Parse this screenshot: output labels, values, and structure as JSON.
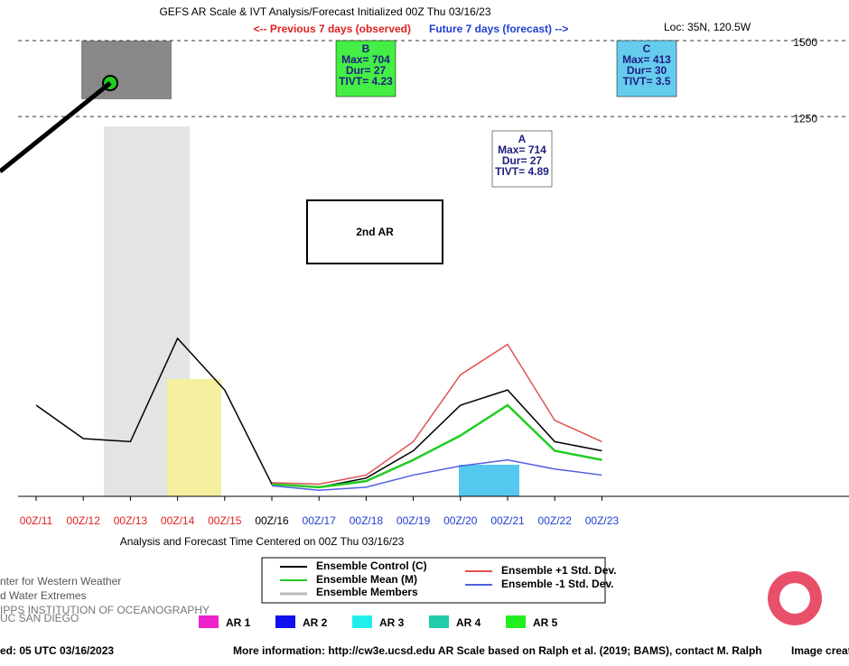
{
  "chart_data": {
    "type": "line",
    "title": "GEFS AR Scale & IVT Analysis/Forecast Initialized 00Z Thu 03/16/23",
    "observed_note": "<-- Previous 7 days (observed)",
    "forecast_note": "Future 7 days (forecast) -->",
    "location": "Loc: 35N, 120.5W",
    "x_label": "Analysis and Forecast Time Centered on 00Z Thu 03/16/23",
    "annotation": "2nd AR",
    "categories": [
      "00Z/11",
      "00Z/12",
      "00Z/13",
      "00Z/14",
      "00Z/15",
      "00Z/16",
      "00Z/17",
      "00Z/18",
      "00Z/19",
      "00Z/20",
      "00Z/21",
      "00Z/22",
      "00Z/23"
    ],
    "category_colors": [
      "#e02020",
      "#e02020",
      "#e02020",
      "#e02020",
      "#e02020",
      "#000000",
      "#2040d0",
      "#2040d0",
      "#2040d0",
      "#2040d0",
      "#2040d0",
      "#2040d0",
      "#2040d0"
    ],
    "ylim": [
      0,
      1500
    ],
    "yticks": [
      1250,
      1500
    ],
    "grid": true,
    "series": [
      {
        "name": "Ensemble Control (C)",
        "color": "#000000",
        "values": [
          300,
          190,
          180,
          520,
          350,
          40,
          30,
          60,
          150,
          300,
          350,
          180,
          150
        ]
      },
      {
        "name": "Ensemble Mean (M)",
        "color": "#22cc22",
        "values": [
          null,
          null,
          null,
          null,
          null,
          40,
          30,
          50,
          120,
          200,
          300,
          150,
          120
        ]
      },
      {
        "name": "Ensemble +1 Std. Dev.",
        "color": "#e05050",
        "values": [
          null,
          null,
          null,
          null,
          null,
          45,
          40,
          70,
          180,
          400,
          500,
          250,
          180
        ]
      },
      {
        "name": "Ensemble -1 Std. Dev.",
        "color": "#5060e0",
        "values": [
          null,
          null,
          null,
          null,
          null,
          35,
          20,
          30,
          70,
          100,
          120,
          90,
          70
        ]
      }
    ],
    "members_label": "Ensemble Members",
    "ar_boxes": [
      {
        "id": "A",
        "max": "Max= 714",
        "dur": "Dur= 27",
        "tivt": "TIVT= 4.89",
        "color": "#ffffff"
      },
      {
        "id": "B",
        "max": "Max= 704",
        "dur": "Dur= 27",
        "tivt": "TIVT= 4.23",
        "color": "#44ee44"
      },
      {
        "id": "C",
        "max": "Max= 413",
        "dur": "Dur= 30",
        "tivt": "TIVT= 3.5",
        "color": "#66ccee"
      }
    ],
    "ar_legend": [
      {
        "name": "AR 1",
        "color": "#ee22cc"
      },
      {
        "name": "AR 2",
        "color": "#1010ee"
      },
      {
        "name": "AR 3",
        "color": "#22eeee"
      },
      {
        "name": "AR 4",
        "color": "#22ccaa"
      },
      {
        "name": "AR 5",
        "color": "#22ee22"
      }
    ]
  },
  "footer": {
    "logo_line1": "nter for Western Weather",
    "logo_line2": "d Water Extremes",
    "logo_line3": "IPPS INSTITUTION OF OCEANOGRAPHY",
    "logo_line4": "UC SAN DIEGO",
    "created": "ed: 05 UTC 03/16/2023",
    "info": "More information: http://cw3e.ucsd.edu  AR Scale based on Ralph et al. (2019; BAMS), contact M. Ralph",
    "image_credit": "Image creat"
  }
}
